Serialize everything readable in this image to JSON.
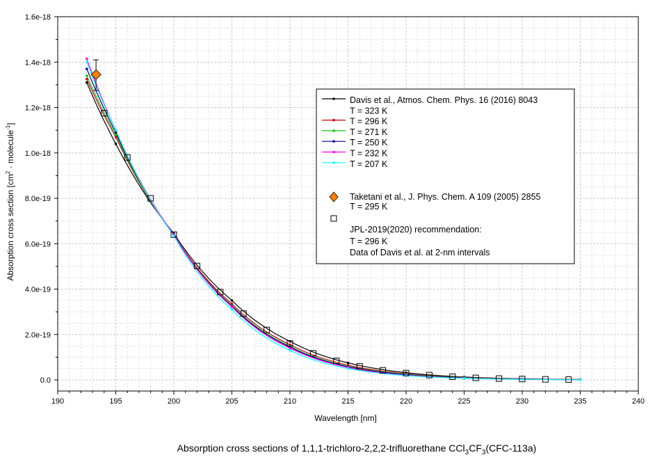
{
  "caption": {
    "prefix": "Absorption cross sections of 1,1,1-trichloro-2,2,2-trifluorethane CCl",
    "sub1": "3",
    "mid": "CF",
    "sub2": "3",
    "suffix": "(CFC-113a)"
  },
  "chart_data": {
    "type": "line",
    "xlabel": "Wavelength [nm]",
    "ylabel_prefix": "Absorption cross section [cm",
    "ylabel_sup1": "2",
    "ylabel_mid": " · molecule",
    "ylabel_sup2": "-1",
    "ylabel_suffix": "]",
    "xlim": [
      190,
      240
    ],
    "ylim": [
      0,
      1.6e-18
    ],
    "x_ticks": [
      "190",
      "195",
      "200",
      "205",
      "210",
      "215",
      "220",
      "225",
      "230",
      "235",
      "240"
    ],
    "y_ticks": [
      "0.0",
      "2.0e-19",
      "4.0e-19",
      "6.0e-19",
      "8.0e-19",
      "1.0e-18",
      "1.2e-18",
      "1.4e-18",
      "1.6e-18"
    ],
    "grid": true,
    "legend_position": "right",
    "legend_header": "Davis et al., Atmos. Chem. Phys. 16 (2016) 8043",
    "x": [
      192.5,
      195,
      200,
      205,
      210,
      215,
      220,
      225,
      230,
      235
    ],
    "series": [
      {
        "name": "T = 323 K",
        "color": "#000000",
        "values": [
          1.31e-18,
          1.04e-18,
          6.45e-19,
          3.5e-19,
          1.7e-19,
          7.5e-20,
          3.2e-20,
          1.3e-20,
          5e-21,
          2e-21
        ]
      },
      {
        "name": "T = 296 K",
        "color": "#cc0000",
        "values": [
          1.325e-18,
          1.07e-18,
          6.4e-19,
          3.35e-19,
          1.55e-19,
          6.5e-20,
          2.7e-20,
          1.1e-20,
          4e-21,
          1.5e-21
        ]
      },
      {
        "name": "T = 271 K",
        "color": "#00cc00",
        "values": [
          1.34e-18,
          1.08e-18,
          6.4e-19,
          3.28e-19,
          1.48e-19,
          6e-20,
          2.5e-20,
          1e-20,
          3.5e-21,
          1.2e-21
        ]
      },
      {
        "name": "T = 250 K",
        "color": "#000099",
        "values": [
          1.37e-18,
          1.09e-18,
          6.4e-19,
          3.25e-19,
          1.45e-19,
          5.8e-20,
          2.3e-20,
          9e-21,
          3e-21,
          1e-21
        ]
      },
      {
        "name": "T = 232 K",
        "color": "#ff00ff",
        "values": [
          1.415e-18,
          1.1e-18,
          6.4e-19,
          3.22e-19,
          1.4e-19,
          5.5e-20,
          2.1e-20,
          8e-21,
          3e-21,
          1e-21
        ]
      },
      {
        "name": "T = 207 K",
        "color": "#00ffff",
        "values": [
          1.4e-18,
          1.1e-18,
          6.35e-19,
          3.1e-19,
          1.3e-19,
          5e-20,
          1.9e-20,
          7e-21,
          2.5e-21,
          8e-22
        ]
      }
    ],
    "taketani": {
      "label1": "Taketani et al., J. Phys. Chem. A 109 (2005) 2855",
      "label2": "T = 295 K",
      "color": "#ff8000",
      "x": 193.3,
      "y": 1.345e-18,
      "err_low": 1.275e-18,
      "err_high": 1.41e-18
    },
    "jpl": {
      "label1": "JPL-2019(2020) recommendation:",
      "label2": "T = 296 K",
      "label3": "Data of Davis et al. at 2-nm intervals",
      "x": [
        194,
        196,
        198,
        200,
        202,
        204,
        206,
        208,
        210,
        212,
        214,
        216,
        218,
        220,
        222,
        224,
        226,
        228,
        230,
        232,
        234
      ],
      "values": [
        1.175e-18,
        9.8e-19,
        8e-19,
        6.4e-19,
        5.02e-19,
        3.87e-19,
        2.92e-19,
        2.2e-19,
        1.6e-19,
        1.17e-19,
        8.4e-20,
        6e-20,
        4.2e-20,
        3e-20,
        2.1e-20,
        1.4e-20,
        9e-21,
        6e-21,
        4e-21,
        2.5e-21,
        1.5e-21
      ]
    }
  }
}
